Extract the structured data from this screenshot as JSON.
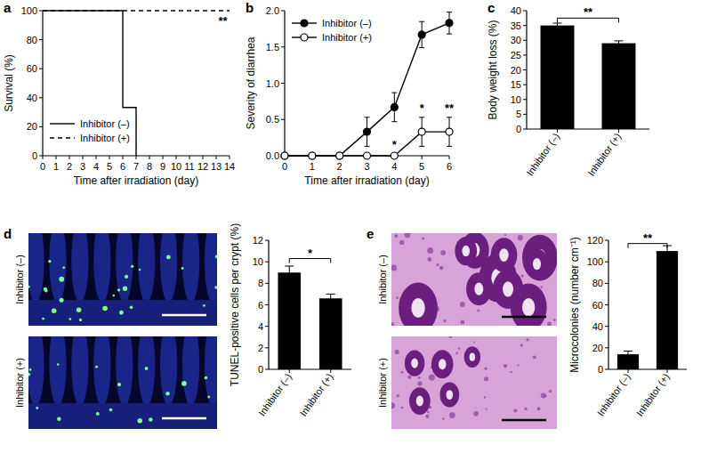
{
  "chart_data": [
    {
      "type": "line",
      "title": "a",
      "x_label": "Time after irradiation (day)",
      "y_label": "Survival (%)",
      "xlim": [
        0,
        14
      ],
      "xticks": [
        0,
        1,
        2,
        3,
        4,
        5,
        6,
        7,
        8,
        9,
        10,
        11,
        12,
        13,
        14
      ],
      "ylim": [
        0,
        100
      ],
      "yticks": [
        0,
        20,
        40,
        60,
        80,
        100
      ],
      "legend": "lower left",
      "series": [
        {
          "name": "Inhibitor (–)",
          "color": "#000000",
          "line_style": "solid",
          "x": [
            0,
            6,
            6,
            7,
            7
          ],
          "values": [
            100,
            100,
            33.3,
            33.3,
            0
          ]
        },
        {
          "name": "Inhibitor (+)",
          "color": "#000000",
          "line_style": "dashed",
          "x": [
            0,
            14
          ],
          "values": [
            100,
            100
          ]
        }
      ],
      "annotations": [
        {
          "text": "**",
          "x": 13.5,
          "y": 90
        }
      ]
    },
    {
      "type": "line",
      "title": "b",
      "y_label": "Severity of diarrhea",
      "x_label": "Time after irradiation (day)",
      "x": [
        0,
        1,
        2,
        3,
        4,
        5,
        6
      ],
      "xlim": [
        0,
        6
      ],
      "xticks": [
        0,
        1,
        2,
        3,
        4,
        5,
        6
      ],
      "ylim": [
        0,
        2
      ],
      "yticks": [
        {
          "value": 0,
          "label": "0.0"
        },
        {
          "value": 0.5,
          "label": "0.5"
        },
        {
          "value": 1,
          "label": "1.0"
        },
        {
          "value": 1.5,
          "label": "1.5"
        },
        {
          "value": 2,
          "label": "2.0"
        }
      ],
      "legend": "upper left",
      "series": [
        {
          "name": "Inhibitor (–)",
          "color": "#000000",
          "line_style": "solid",
          "marker": "filled-circle",
          "values": [
            0,
            0,
            0,
            0.33,
            0.67,
            1.67,
            1.83
          ],
          "errors": [
            0,
            0,
            0,
            0.2,
            0.2,
            0.18,
            0.15
          ]
        },
        {
          "name": "Inhibitor (+)",
          "color": "#000000",
          "line_style": "solid",
          "marker": "open-circle",
          "values": [
            0,
            0,
            0,
            0,
            0,
            0.33,
            0.33
          ],
          "errors": [
            0,
            0,
            0,
            0,
            0,
            0.2,
            0.2
          ]
        }
      ],
      "annotations": [
        {
          "text": "*",
          "x": 4,
          "y": 0.1
        },
        {
          "text": "*",
          "x": 5,
          "y": 0.6
        },
        {
          "text": "**",
          "x": 6,
          "y": 0.6
        }
      ]
    },
    {
      "type": "bar",
      "title": "c",
      "y_label": "Body weight loss (%)",
      "categories": [
        "Inhibitor (–)",
        "Inhibitor (+)"
      ],
      "values": [
        35,
        29
      ],
      "errors": [
        0.8,
        0.8
      ],
      "color": "#000000",
      "ylim": [
        0,
        40
      ],
      "yticks": [
        0,
        5,
        10,
        15,
        20,
        25,
        30,
        35,
        40
      ],
      "annotations": [
        {
          "text": "**",
          "between": [
            0,
            1
          ],
          "y": 37.5
        }
      ]
    },
    {
      "type": "bar",
      "title": "d",
      "y_label": "TUNEL-positive cells per crypt (%)",
      "image_labels": [
        "Inhibitor (–)",
        "Inhibitor (+)"
      ],
      "categories": [
        "Inhibitor (–)",
        "Inhibitor (+)"
      ],
      "values": [
        9,
        6.6
      ],
      "errors": [
        0.6,
        0.4
      ],
      "color": "#000000",
      "ylim": [
        0,
        12
      ],
      "yticks": [
        0,
        2,
        4,
        6,
        8,
        10,
        12
      ],
      "annotations": [
        {
          "text": "*",
          "between": [
            0,
            1
          ],
          "y": 10.3
        }
      ]
    },
    {
      "type": "bar",
      "title": "e",
      "y_label": "Microcolonies (number cm⁻¹)",
      "image_labels": [
        "Inhibitor (–)",
        "Inhibitor (+)"
      ],
      "categories": [
        "Inhibitor (–)",
        "Inhibitor (+)"
      ],
      "values": [
        14,
        110
      ],
      "errors": [
        3,
        5
      ],
      "color": "#000000",
      "ylim": [
        0,
        120
      ],
      "yticks": [
        0,
        20,
        40,
        60,
        80,
        100,
        120
      ],
      "annotations": [
        {
          "text": "**",
          "between": [
            0,
            1
          ],
          "y": 117
        }
      ]
    }
  ]
}
